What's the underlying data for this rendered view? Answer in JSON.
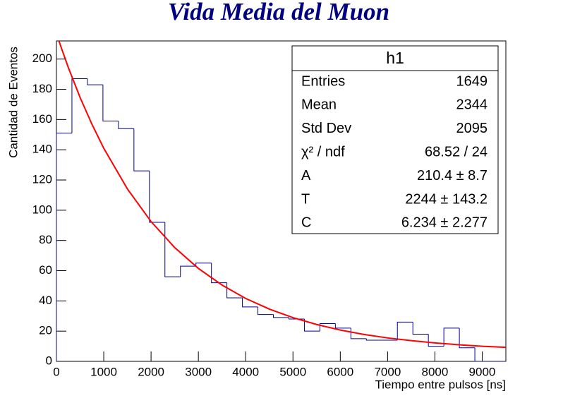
{
  "chart_data": {
    "type": "histogram",
    "title": "Vida  Media del Muon",
    "x_label": "Tiempo entre pulsos [ns]",
    "y_label": "Cantidad de Eventos",
    "bins": [
      0,
      327.6,
      655.2,
      982.8,
      1310.3,
      1637.9,
      1965.5,
      2293.1,
      2620.7,
      2948.3,
      3275.9,
      3603.4,
      3931.0,
      4258.6,
      4586.2,
      4913.8,
      5241.4,
      5569.0,
      5896.6,
      6224.1,
      6551.7,
      6879.3,
      7206.9,
      7534.5,
      7862.1,
      8189.7,
      8517.2,
      8844.8,
      9172.4,
      9500
    ],
    "counts": [
      151,
      187,
      183,
      159,
      154,
      126,
      92,
      56,
      63,
      65,
      52,
      42,
      36,
      31,
      29,
      28,
      20,
      25,
      22,
      15,
      14,
      14,
      26,
      18,
      10,
      22,
      9,
      0,
      0
    ],
    "color": "#000099",
    "fit": {
      "color": "#ff0000",
      "x": [
        0,
        250,
        500,
        750,
        1000,
        1500,
        2000,
        2500,
        3000,
        3500,
        4000,
        4500,
        5000,
        5500,
        6000,
        6500,
        7000,
        7500,
        8000,
        8500,
        9000,
        9500
      ],
      "y": [
        216.6,
        194.5,
        174.6,
        156.9,
        141.0,
        114.1,
        92.5,
        75.3,
        61.5,
        50.5,
        41.6,
        34.6,
        28.9,
        24.4,
        20.7,
        17.8,
        15.5,
        13.7,
        12.2,
        11.0,
        10.0,
        9.3
      ]
    },
    "xlim": [
      0,
      9500
    ],
    "ylim": [
      0,
      212
    ],
    "xticks": [
      0,
      1000,
      2000,
      3000,
      4000,
      5000,
      6000,
      7000,
      8000,
      9000
    ],
    "yticks": [
      0,
      20,
      40,
      60,
      80,
      100,
      120,
      140,
      160,
      180,
      200
    ],
    "stats_box": {
      "title": "h1",
      "rows": [
        {
          "label": "Entries",
          "value": "1649"
        },
        {
          "label": "Mean",
          "value": "2344"
        },
        {
          "label": "Std Dev",
          "value": "2095"
        },
        {
          "label": "χ² / ndf",
          "value": "68.52 / 24"
        },
        {
          "label": "A",
          "value": "210.4 ± 8.7"
        },
        {
          "label": "T",
          "value": "2244 ± 143.2"
        },
        {
          "label": "C",
          "value": "6.234 ± 2.277"
        }
      ]
    }
  }
}
